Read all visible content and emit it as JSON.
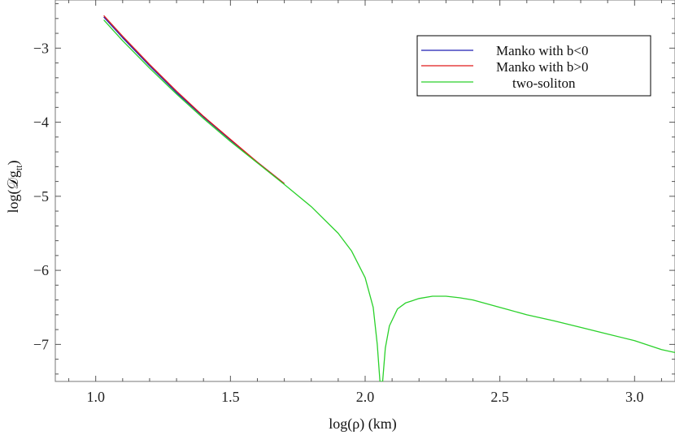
{
  "chart_data": {
    "type": "line",
    "xlabel": "log(ρ) (km)",
    "ylabel_main": "log(𝒟g",
    "ylabel_sub": "tt",
    "ylabel_close": ")",
    "xlim": [
      0.85,
      3.15
    ],
    "ylim": [
      -7.5,
      -2.35
    ],
    "xticks": [
      1.0,
      1.5,
      2.0,
      2.5,
      3.0
    ],
    "xtick_labels": [
      "1.0",
      "1.5",
      "2.0",
      "2.5",
      "3.0"
    ],
    "yticks": [
      -3,
      -4,
      -5,
      -6,
      -7
    ],
    "ytick_labels": [
      "−3",
      "−4",
      "−5",
      "−6",
      "−7"
    ],
    "grid": false,
    "legend_position": "top-right",
    "series": [
      {
        "name": "Manko with b<0",
        "color": "#1f1fb4",
        "x": [
          1.03,
          1.1,
          1.2,
          1.3,
          1.4,
          1.5,
          1.6,
          1.7
        ],
        "y": [
          -2.58,
          -2.86,
          -3.24,
          -3.6,
          -3.93,
          -4.24,
          -4.54,
          -4.83
        ]
      },
      {
        "name": "Manko with b>0",
        "color": "#e01b1b",
        "x": [
          1.03,
          1.1,
          1.2,
          1.3,
          1.4,
          1.5,
          1.6,
          1.7
        ],
        "y": [
          -2.56,
          -2.84,
          -3.22,
          -3.58,
          -3.92,
          -4.23,
          -4.54,
          -4.83
        ]
      },
      {
        "name": "two-soliton",
        "color": "#2ad12a",
        "x": [
          1.03,
          1.1,
          1.2,
          1.3,
          1.4,
          1.5,
          1.6,
          1.7,
          1.8,
          1.9,
          1.95,
          2.0,
          2.03,
          2.045,
          2.055,
          2.065,
          2.075,
          2.09,
          2.12,
          2.15,
          2.2,
          2.25,
          2.3,
          2.35,
          2.4,
          2.5,
          2.6,
          2.7,
          2.8,
          2.9,
          3.0,
          3.1,
          3.15
        ],
        "y": [
          -2.62,
          -2.9,
          -3.27,
          -3.62,
          -3.95,
          -4.26,
          -4.55,
          -4.84,
          -5.14,
          -5.5,
          -5.74,
          -6.1,
          -6.5,
          -7.0,
          -7.5,
          -7.5,
          -7.05,
          -6.75,
          -6.52,
          -6.44,
          -6.38,
          -6.35,
          -6.35,
          -6.37,
          -6.4,
          -6.5,
          -6.6,
          -6.68,
          -6.77,
          -6.86,
          -6.95,
          -7.07,
          -7.11
        ]
      }
    ]
  }
}
